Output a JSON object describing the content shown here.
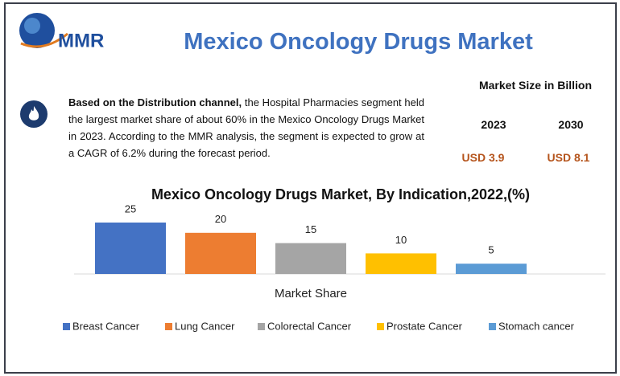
{
  "header": {
    "logo": "MMR",
    "title": "Mexico Oncology Drugs Market"
  },
  "description": {
    "bold": "Based on the Distribution channel,",
    "text": "the Hospital Pharmacies segment held the largest market share of about 60% in the Mexico Oncology Drugs Market in 2023. According to the MMR analysis, the segment is expected to grow at a CAGR of 6.2% during the forecast period."
  },
  "market_size": {
    "title": "Market Size in Billion",
    "years": [
      "2023",
      "2030"
    ],
    "values": [
      "USD 3.9",
      "USD 8.1"
    ]
  },
  "chart_data": {
    "type": "bar",
    "title": "Mexico Oncology Drugs Market, By Indication,2022,(%)",
    "x_label": "Market Share",
    "series": [
      {
        "name": "Breast Cancer",
        "color": "#4472c4",
        "values": [
          25
        ]
      },
      {
        "name": "Lung Cancer",
        "color": "#ed7d31",
        "values": [
          20
        ]
      },
      {
        "name": "Colorectal Cancer",
        "color": "#a5a5a5",
        "values": [
          15
        ]
      },
      {
        "name": "Prostate Cancer",
        "color": "#ffc000",
        "values": [
          10
        ]
      },
      {
        "name": "Stomach cancer",
        "color": "#5b9bd5",
        "values": [
          5
        ]
      }
    ]
  }
}
